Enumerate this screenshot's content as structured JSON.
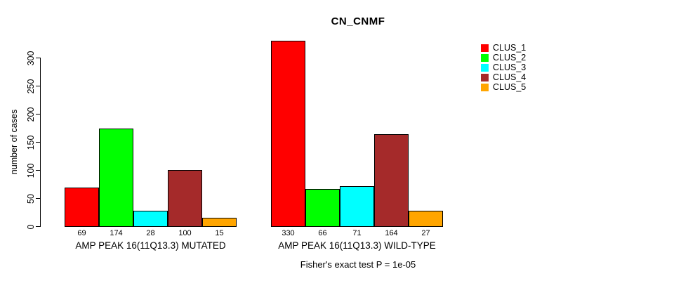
{
  "title": "CN_CNMF",
  "footer": "Fisher's exact test P = 1e-05",
  "chart_data": {
    "type": "bar",
    "title": "CN_CNMF",
    "xlabel": "",
    "ylabel": "number of cases",
    "ylim": [
      0,
      330
    ],
    "yticks": [
      0,
      50,
      100,
      150,
      200,
      250,
      300
    ],
    "grid": false,
    "legend_position": "right-top-outside",
    "series_labels": [
      "CLUS_1",
      "CLUS_2",
      "CLUS_3",
      "CLUS_4",
      "CLUS_5"
    ],
    "colors": [
      "#FF0000",
      "#00FF00",
      "#00FFFF",
      "#A52A2A",
      "#FFA500"
    ],
    "groups": [
      {
        "label": "AMP PEAK 16(11Q13.3) MUTATED",
        "values": [
          69,
          174,
          28,
          100,
          15
        ]
      },
      {
        "label": "AMP PEAK 16(11Q13.3) WILD-TYPE",
        "values": [
          330,
          66,
          71,
          164,
          27
        ]
      }
    ],
    "annotation": "Fisher's exact test P = 1e-05"
  }
}
